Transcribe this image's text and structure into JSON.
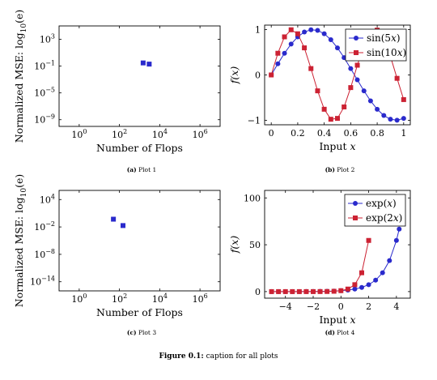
{
  "chart_data": [
    {
      "id": "plot1",
      "type": "scatter",
      "xscale": "log",
      "yscale": "log",
      "xlim": [
        0.1,
        10000000
      ],
      "ylim": [
        1e-10,
        100000.0
      ],
      "xticks": [
        1,
        100,
        10000,
        1000000
      ],
      "xtick_labels": [
        {
          "base": "10",
          "exp": "0"
        },
        {
          "base": "10",
          "exp": "2"
        },
        {
          "base": "10",
          "exp": "4"
        },
        {
          "base": "10",
          "exp": "6"
        }
      ],
      "yticks": [
        1000,
        0.1,
        1e-05,
        1e-09
      ],
      "ytick_labels": [
        {
          "base": "10",
          "exp": "3"
        },
        {
          "base": "10",
          "exp": "−1"
        },
        {
          "base": "10",
          "exp": "−5"
        },
        {
          "base": "10",
          "exp": "−9"
        }
      ],
      "xlabel": "Number of Flops",
      "ylabel_prefix": "Normalized MSE: log",
      "ylabel_sub": "10",
      "ylabel_arg": "(e)",
      "color": "#2a2acc",
      "marker": "square",
      "series": [
        {
          "x": [
            1500,
            3000
          ],
          "y": [
            0.3,
            0.2
          ]
        }
      ],
      "caption_label": "(a)",
      "caption_text": "Plot 1"
    },
    {
      "id": "plot2",
      "type": "line",
      "xlim": [
        -0.05,
        1.05
      ],
      "ylim": [
        -1.1,
        1.1
      ],
      "xticks": [
        0,
        0.2,
        0.4,
        0.6,
        0.8,
        1
      ],
      "xtick_labels": [
        "0",
        "0.2",
        "0.4",
        "0.6",
        "0.8",
        "1"
      ],
      "yticks": [
        -1,
        0,
        1
      ],
      "ytick_labels": [
        "−1",
        "0",
        "1"
      ],
      "xlabel_text": "Input ",
      "xlabel_var": "x",
      "ylabel": "f(x)",
      "legend_position": "top-right",
      "series": [
        {
          "name_fn": "sin",
          "name_arg": "(5x)",
          "color": "#2a2acc",
          "marker": "circle",
          "x": [
            0,
            0.05,
            0.1,
            0.15,
            0.2,
            0.25,
            0.3,
            0.35,
            0.4,
            0.45,
            0.5,
            0.55,
            0.6,
            0.65,
            0.7,
            0.75,
            0.8,
            0.85,
            0.9,
            0.95,
            1
          ],
          "y": [
            0,
            0.247,
            0.479,
            0.682,
            0.841,
            0.949,
            0.997,
            0.984,
            0.909,
            0.778,
            0.598,
            0.382,
            0.141,
            -0.108,
            -0.351,
            -0.572,
            -0.757,
            -0.895,
            -0.978,
            -0.999,
            -0.959
          ]
        },
        {
          "name_fn": "sin",
          "name_arg": "(10x)",
          "color": "#cc2233",
          "marker": "square",
          "x": [
            0,
            0.05,
            0.1,
            0.15,
            0.2,
            0.25,
            0.3,
            0.35,
            0.4,
            0.45,
            0.5,
            0.55,
            0.6,
            0.65,
            0.7,
            0.75,
            0.8,
            0.85,
            0.9,
            0.95,
            1
          ],
          "y": [
            0,
            0.479,
            0.841,
            0.997,
            0.909,
            0.598,
            0.141,
            -0.351,
            -0.757,
            -0.978,
            -0.959,
            -0.706,
            -0.279,
            0.215,
            0.657,
            0.938,
            0.989,
            0.798,
            0.412,
            -0.075,
            -0.544
          ]
        }
      ],
      "caption_label": "(b)",
      "caption_text": "Plot 2"
    },
    {
      "id": "plot3",
      "type": "scatter",
      "xscale": "log",
      "yscale": "log",
      "xlim": [
        0.1,
        10000000
      ],
      "ylim": [
        1e-16,
        1000000.0
      ],
      "xticks": [
        1,
        100,
        10000,
        1000000
      ],
      "xtick_labels": [
        {
          "base": "10",
          "exp": "0"
        },
        {
          "base": "10",
          "exp": "2"
        },
        {
          "base": "10",
          "exp": "4"
        },
        {
          "base": "10",
          "exp": "6"
        }
      ],
      "yticks": [
        10000,
        0.01,
        1e-08,
        1e-14
      ],
      "ytick_labels": [
        {
          "base": "10",
          "exp": "4"
        },
        {
          "base": "10",
          "exp": "−2"
        },
        {
          "base": "10",
          "exp": "−8"
        },
        {
          "base": "10",
          "exp": "−14"
        }
      ],
      "xlabel": "Number of Flops",
      "ylabel_prefix": "Normalized MSE: log",
      "ylabel_sub": "10",
      "ylabel_arg": "(e)",
      "color": "#2a2acc",
      "marker": "square",
      "series": [
        {
          "x": [
            50,
            150
          ],
          "y": [
            0.5,
            0.02
          ]
        }
      ],
      "caption_label": "(c)",
      "caption_text": "Plot 3"
    },
    {
      "id": "plot4",
      "type": "line",
      "xlim": [
        -5.5,
        5
      ],
      "ylim": [
        -7,
        108
      ],
      "xticks": [
        -4,
        -2,
        0,
        2,
        4
      ],
      "xtick_labels": [
        "−4",
        "−2",
        "0",
        "2",
        "4"
      ],
      "yticks": [
        0,
        50,
        100
      ],
      "ytick_labels": [
        "0",
        "50",
        "100"
      ],
      "xlabel_text": "Input ",
      "xlabel_var": "x",
      "ylabel": "f(x)",
      "legend_position": "top-left",
      "series": [
        {
          "name_fn": "exp",
          "name_arg": "(x)",
          "color": "#2a2acc",
          "marker": "circle",
          "x": [
            -5,
            -4.5,
            -4,
            -3.5,
            -3,
            -2.5,
            -2,
            -1.5,
            -1,
            -0.5,
            0,
            0.5,
            1,
            1.5,
            2,
            2.5,
            3,
            3.5,
            4,
            4.2
          ],
          "y": [
            0.007,
            0.011,
            0.018,
            0.03,
            0.05,
            0.082,
            0.135,
            0.223,
            0.368,
            0.607,
            1,
            1.65,
            2.72,
            4.48,
            7.39,
            12.2,
            20.1,
            33.1,
            54.6,
            66.7
          ]
        },
        {
          "name_fn": "exp",
          "name_arg": "(2x)",
          "color": "#cc2233",
          "marker": "square",
          "x": [
            -5,
            -4.5,
            -4,
            -3.5,
            -3,
            -2.5,
            -2,
            -1.5,
            -1,
            -0.5,
            0,
            0.5,
            1,
            1.5,
            2
          ],
          "y": [
            0,
            0,
            0,
            0.001,
            0.002,
            0.007,
            0.018,
            0.05,
            0.135,
            0.368,
            1,
            2.72,
            7.39,
            20.1,
            54.6
          ]
        }
      ],
      "caption_label": "(d)",
      "caption_text": "Plot 4"
    }
  ],
  "figure_caption_label": "Figure 0.1:",
  "figure_caption_text": " caption for all plots"
}
